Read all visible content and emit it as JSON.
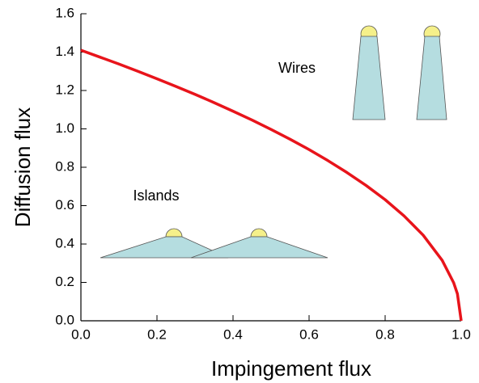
{
  "chart_data": {
    "type": "line",
    "xlabel": "Impingement flux",
    "ylabel": "Diffusion flux",
    "annotations": [
      "Wires",
      "Islands"
    ],
    "x": [
      0,
      0.05,
      0.1,
      0.15,
      0.2,
      0.25,
      0.3,
      0.35,
      0.4,
      0.45,
      0.5,
      0.55,
      0.6,
      0.65,
      0.7,
      0.75,
      0.8,
      0.85,
      0.9,
      0.95,
      0.98,
      0.99,
      1.0
    ],
    "values": [
      1.41,
      1.374,
      1.338,
      1.3,
      1.261,
      1.221,
      1.18,
      1.137,
      1.092,
      1.046,
      0.997,
      0.946,
      0.892,
      0.834,
      0.772,
      0.705,
      0.631,
      0.546,
      0.446,
      0.315,
      0.199,
      0.141,
      0
    ],
    "color": "#e8141b",
    "xlim": [
      0,
      1.0
    ],
    "xticks": [
      {
        "value": 0,
        "label": "0.0"
      },
      0.2,
      0.4,
      0.6,
      0.8,
      {
        "value": 1,
        "label": "1.0"
      }
    ],
    "ylim": [
      0,
      1.6
    ],
    "yticks": [
      {
        "value": 0,
        "label": "0.0"
      },
      0.2,
      0.4,
      0.6,
      0.8,
      {
        "value": 1,
        "label": "1.0"
      },
      1.2,
      1.4,
      1.6
    ]
  }
}
